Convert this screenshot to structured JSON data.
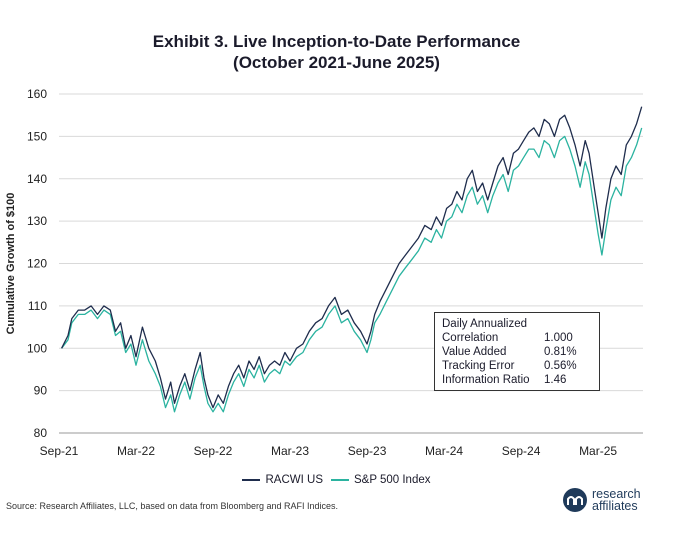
{
  "title_line1": "Exhibit 3. Live Inception-to-Date Performance",
  "title_line2": "(October 2021-June 2025)",
  "source": "Source: Research Affiliates, LLC, based on data from Bloomberg and RAFI Indices.",
  "logo": {
    "line1": "research",
    "line2": "affiliates",
    "color": "#1f3a5a"
  },
  "stats": {
    "header": "Daily Annualized",
    "rows": [
      {
        "label": "Correlation",
        "value": "1.000"
      },
      {
        "label": "Value Added",
        "value": "0.81%"
      },
      {
        "label": "Tracking Error",
        "value": "0.56%"
      },
      {
        "label": "Information Ratio",
        "value": "1.46"
      }
    ]
  },
  "chart_data": {
    "type": "line",
    "title": "Exhibit 3. Live Inception-to-Date Performance (October 2021-June 2025)",
    "xlabel": "",
    "ylabel": "Cumulative Growth of $100",
    "ylim": [
      80,
      160
    ],
    "yticks": [
      80,
      90,
      100,
      110,
      120,
      130,
      140,
      150,
      160
    ],
    "xlim": [
      0,
      45.5
    ],
    "xticks": [
      {
        "x": 0,
        "label": "Sep-21"
      },
      {
        "x": 6,
        "label": "Mar-22"
      },
      {
        "x": 12,
        "label": "Sep-22"
      },
      {
        "x": 18,
        "label": "Mar-23"
      },
      {
        "x": 24,
        "label": "Sep-23"
      },
      {
        "x": 30,
        "label": "Mar-24"
      },
      {
        "x": 36,
        "label": "Sep-24"
      },
      {
        "x": 42,
        "label": "Mar-25"
      }
    ],
    "grid": true,
    "legend": "bottom",
    "series": [
      {
        "name": "RACWI US",
        "color": "#1f2d4d",
        "points": [
          [
            0.2,
            100
          ],
          [
            0.7,
            103
          ],
          [
            1.0,
            107
          ],
          [
            1.5,
            109
          ],
          [
            2.0,
            109
          ],
          [
            2.5,
            110
          ],
          [
            3.0,
            108
          ],
          [
            3.5,
            110
          ],
          [
            4.0,
            109
          ],
          [
            4.4,
            104
          ],
          [
            4.8,
            106
          ],
          [
            5.2,
            100
          ],
          [
            5.6,
            103
          ],
          [
            6.0,
            98
          ],
          [
            6.5,
            105
          ],
          [
            7.0,
            100
          ],
          [
            7.5,
            97
          ],
          [
            7.9,
            93
          ],
          [
            8.3,
            88
          ],
          [
            8.7,
            92
          ],
          [
            9.0,
            87
          ],
          [
            9.4,
            91
          ],
          [
            9.8,
            94
          ],
          [
            10.2,
            90
          ],
          [
            10.6,
            95
          ],
          [
            11.0,
            99
          ],
          [
            11.3,
            93
          ],
          [
            11.6,
            89
          ],
          [
            12.0,
            86
          ],
          [
            12.4,
            89
          ],
          [
            12.8,
            87
          ],
          [
            13.2,
            91
          ],
          [
            13.6,
            94
          ],
          [
            14.0,
            96
          ],
          [
            14.4,
            93
          ],
          [
            14.8,
            97
          ],
          [
            15.2,
            95
          ],
          [
            15.6,
            98
          ],
          [
            16.0,
            94
          ],
          [
            16.4,
            96
          ],
          [
            16.8,
            97
          ],
          [
            17.2,
            96
          ],
          [
            17.6,
            99
          ],
          [
            18.0,
            97
          ],
          [
            18.5,
            100
          ],
          [
            19.0,
            101
          ],
          [
            19.5,
            104
          ],
          [
            20.0,
            106
          ],
          [
            20.5,
            107
          ],
          [
            21.0,
            110
          ],
          [
            21.5,
            112
          ],
          [
            22.0,
            108
          ],
          [
            22.5,
            109
          ],
          [
            23.0,
            106
          ],
          [
            23.5,
            104
          ],
          [
            24.0,
            101
          ],
          [
            24.3,
            104
          ],
          [
            24.6,
            108
          ],
          [
            25.0,
            111
          ],
          [
            25.5,
            114
          ],
          [
            26.0,
            117
          ],
          [
            26.5,
            120
          ],
          [
            27.0,
            122
          ],
          [
            27.5,
            124
          ],
          [
            28.0,
            126
          ],
          [
            28.5,
            129
          ],
          [
            29.0,
            128
          ],
          [
            29.4,
            131
          ],
          [
            29.8,
            129
          ],
          [
            30.2,
            133
          ],
          [
            30.6,
            134
          ],
          [
            31.0,
            137
          ],
          [
            31.4,
            135
          ],
          [
            31.8,
            140
          ],
          [
            32.2,
            142
          ],
          [
            32.6,
            137
          ],
          [
            33.0,
            139
          ],
          [
            33.4,
            135
          ],
          [
            33.8,
            139
          ],
          [
            34.2,
            143
          ],
          [
            34.6,
            145
          ],
          [
            35.0,
            141
          ],
          [
            35.4,
            146
          ],
          [
            35.8,
            147
          ],
          [
            36.2,
            149
          ],
          [
            36.6,
            151
          ],
          [
            37.0,
            152
          ],
          [
            37.4,
            150
          ],
          [
            37.8,
            154
          ],
          [
            38.2,
            153
          ],
          [
            38.6,
            150
          ],
          [
            39.0,
            154
          ],
          [
            39.4,
            155
          ],
          [
            39.8,
            152
          ],
          [
            40.2,
            148
          ],
          [
            40.6,
            143
          ],
          [
            41.0,
            149
          ],
          [
            41.3,
            146
          ],
          [
            41.7,
            138
          ],
          [
            42.0,
            132
          ],
          [
            42.3,
            126
          ],
          [
            42.6,
            133
          ],
          [
            43.0,
            140
          ],
          [
            43.4,
            143
          ],
          [
            43.8,
            141
          ],
          [
            44.2,
            148
          ],
          [
            44.6,
            150
          ],
          [
            45.0,
            153
          ],
          [
            45.4,
            157
          ]
        ]
      },
      {
        "name": "S&P 500 Index",
        "color": "#2bb3a0",
        "points": [
          [
            0.2,
            100
          ],
          [
            0.7,
            102
          ],
          [
            1.0,
            106
          ],
          [
            1.5,
            108
          ],
          [
            2.0,
            108
          ],
          [
            2.5,
            109
          ],
          [
            3.0,
            107
          ],
          [
            3.5,
            109
          ],
          [
            4.0,
            108
          ],
          [
            4.4,
            103
          ],
          [
            4.8,
            104
          ],
          [
            5.2,
            99
          ],
          [
            5.6,
            101
          ],
          [
            6.0,
            96
          ],
          [
            6.5,
            102
          ],
          [
            7.0,
            97
          ],
          [
            7.5,
            94
          ],
          [
            7.9,
            91
          ],
          [
            8.3,
            86
          ],
          [
            8.7,
            89
          ],
          [
            9.0,
            85
          ],
          [
            9.4,
            89
          ],
          [
            9.8,
            92
          ],
          [
            10.2,
            88
          ],
          [
            10.6,
            93
          ],
          [
            11.0,
            96
          ],
          [
            11.3,
            91
          ],
          [
            11.6,
            87
          ],
          [
            12.0,
            85
          ],
          [
            12.4,
            87
          ],
          [
            12.8,
            85
          ],
          [
            13.2,
            89
          ],
          [
            13.6,
            92
          ],
          [
            14.0,
            94
          ],
          [
            14.4,
            91
          ],
          [
            14.8,
            95
          ],
          [
            15.2,
            93
          ],
          [
            15.6,
            96
          ],
          [
            16.0,
            92
          ],
          [
            16.4,
            94
          ],
          [
            16.8,
            95
          ],
          [
            17.2,
            94
          ],
          [
            17.6,
            97
          ],
          [
            18.0,
            96
          ],
          [
            18.5,
            98
          ],
          [
            19.0,
            99
          ],
          [
            19.5,
            102
          ],
          [
            20.0,
            104
          ],
          [
            20.5,
            105
          ],
          [
            21.0,
            108
          ],
          [
            21.5,
            110
          ],
          [
            22.0,
            106
          ],
          [
            22.5,
            107
          ],
          [
            23.0,
            104
          ],
          [
            23.5,
            102
          ],
          [
            24.0,
            99
          ],
          [
            24.3,
            102
          ],
          [
            24.6,
            106
          ],
          [
            25.0,
            108
          ],
          [
            25.5,
            111
          ],
          [
            26.0,
            114
          ],
          [
            26.5,
            117
          ],
          [
            27.0,
            119
          ],
          [
            27.5,
            121
          ],
          [
            28.0,
            123
          ],
          [
            28.5,
            126
          ],
          [
            29.0,
            125
          ],
          [
            29.4,
            128
          ],
          [
            29.8,
            126
          ],
          [
            30.2,
            130
          ],
          [
            30.6,
            131
          ],
          [
            31.0,
            134
          ],
          [
            31.4,
            132
          ],
          [
            31.8,
            136
          ],
          [
            32.2,
            138
          ],
          [
            32.6,
            134
          ],
          [
            33.0,
            136
          ],
          [
            33.4,
            132
          ],
          [
            33.8,
            136
          ],
          [
            34.2,
            139
          ],
          [
            34.6,
            141
          ],
          [
            35.0,
            137
          ],
          [
            35.4,
            142
          ],
          [
            35.8,
            143
          ],
          [
            36.2,
            145
          ],
          [
            36.6,
            147
          ],
          [
            37.0,
            147
          ],
          [
            37.4,
            145
          ],
          [
            37.8,
            149
          ],
          [
            38.2,
            148
          ],
          [
            38.6,
            145
          ],
          [
            39.0,
            149
          ],
          [
            39.4,
            150
          ],
          [
            39.8,
            147
          ],
          [
            40.2,
            143
          ],
          [
            40.6,
            138
          ],
          [
            41.0,
            144
          ],
          [
            41.3,
            141
          ],
          [
            41.7,
            133
          ],
          [
            42.0,
            127
          ],
          [
            42.3,
            122
          ],
          [
            42.6,
            128
          ],
          [
            43.0,
            135
          ],
          [
            43.4,
            138
          ],
          [
            43.8,
            136
          ],
          [
            44.2,
            143
          ],
          [
            44.6,
            145
          ],
          [
            45.0,
            148
          ],
          [
            45.4,
            152
          ]
        ]
      }
    ]
  },
  "legend_items": [
    "RACWI US",
    "S&P 500 Index"
  ]
}
